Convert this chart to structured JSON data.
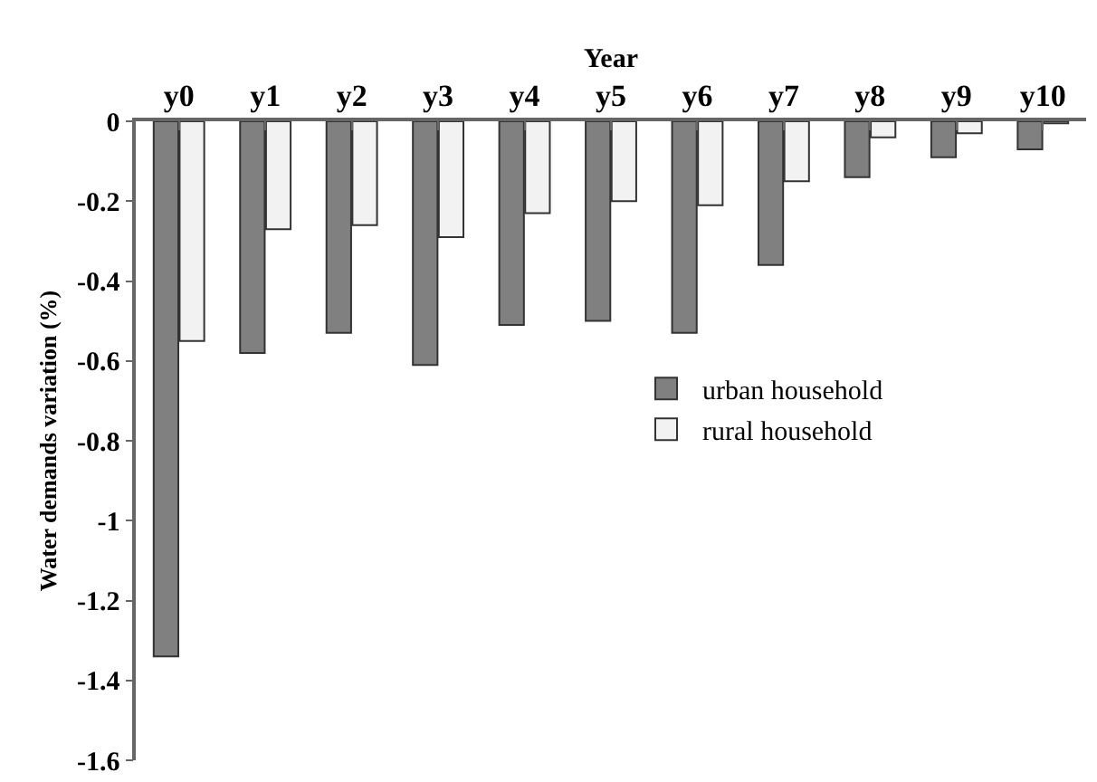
{
  "chart_data": {
    "type": "bar",
    "xlabel": "Year",
    "ylabel": "Water demands variation (%)",
    "categories": [
      "y0",
      "y1",
      "y2",
      "y3",
      "y4",
      "y5",
      "y6",
      "y7",
      "y8",
      "y9",
      "y10"
    ],
    "series": [
      {
        "name": "urban household",
        "color": "#808080",
        "values": [
          -1.34,
          -0.58,
          -0.53,
          -0.61,
          -0.51,
          -0.5,
          -0.53,
          -0.36,
          -0.14,
          -0.09,
          -0.07
        ]
      },
      {
        "name": "rural household",
        "color": "#f2f2f2",
        "values": [
          -0.55,
          -0.27,
          -0.26,
          -0.29,
          -0.23,
          -0.2,
          -0.21,
          -0.15,
          -0.04,
          -0.03,
          -0.005
        ]
      }
    ],
    "ylim": [
      -1.6,
      0
    ],
    "yticks": [
      -1.6,
      -1.4,
      -1.2,
      -1,
      -0.8,
      -0.6,
      -0.4,
      -0.2,
      0
    ],
    "grid": false,
    "legend": "right"
  }
}
